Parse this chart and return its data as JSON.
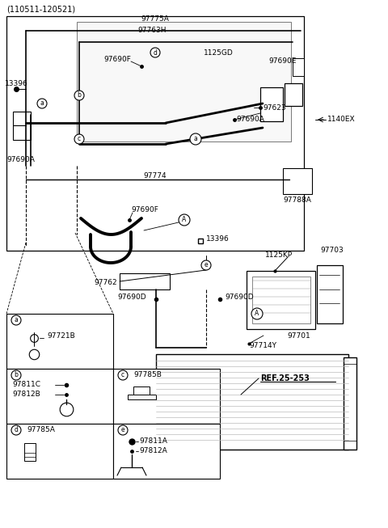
{
  "title": "(110511-120521)",
  "bg_color": "#ffffff",
  "line_color": "#000000",
  "text_color": "#000000",
  "fig_width": 4.8,
  "fig_height": 6.53,
  "dpi": 100,
  "labels": {
    "top_center": "97775A",
    "top_center2": "97763H",
    "upper_left_tag": "13396",
    "upper_mid_f": "97690F",
    "upper_1125gd": "1125GD",
    "upper_690e": "97690E",
    "upper_690a_left": "97690A",
    "upper_690a_right": "97690A",
    "upper_97623": "97623",
    "upper_1140ex": "1140EX",
    "upper_97774": "97774",
    "mid_97788a": "97788A",
    "mid_690f": "97690F",
    "mid_13396": "13396",
    "mid_97762": "97762",
    "mid_97690d_left": "97690D",
    "mid_97690d_right": "97690D",
    "right_1125kp": "1125KP",
    "right_97703": "97703",
    "right_97701": "97701",
    "right_97714y": "97714Y",
    "ref": "REF.25-253",
    "box_a_part": "97721B",
    "box_b_part1": "97811C",
    "box_b_part2": "97812B",
    "box_c_part": "97785B",
    "box_d_part": "97785A",
    "box_e_part1": "97811A",
    "box_e_part2": "97812A"
  }
}
